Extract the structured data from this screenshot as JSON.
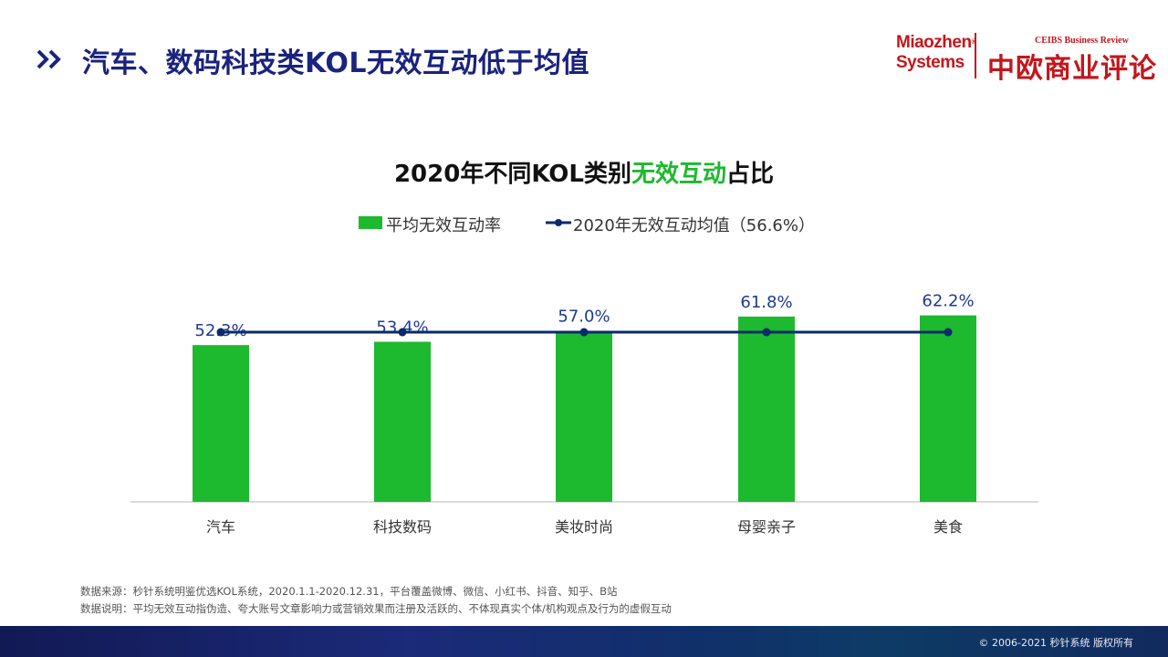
{
  "header": {
    "title": "汽车、数码科技类KOL无效互动低于均值",
    "logo_miaozhen_line1": "Miaozhen",
    "logo_miaozhen_line2": "Systems",
    "logo_ceibs_en": "CEIBS Business Review",
    "logo_ceibs_cn": "中欧商业评论"
  },
  "chart_title": {
    "part1": "2020年不同KOL类别",
    "highlight": "无效互动",
    "part2": "占比"
  },
  "legend": {
    "bar_label": "平均无效互动率",
    "line_label": "2020年无效互动均值（56.6%）"
  },
  "chart_data": {
    "type": "bar",
    "categories": [
      "汽车",
      "科技数码",
      "美妆时尚",
      "母婴亲子",
      "美食"
    ],
    "series": [
      {
        "name": "平均无效互动率",
        "values": [
          52.3,
          53.4,
          57.0,
          61.8,
          62.2
        ],
        "labels": [
          "52.3%",
          "53.4%",
          "57.0%",
          "61.8%",
          "62.2%"
        ],
        "color": "#1db92e"
      }
    ],
    "average_line": {
      "name": "2020年无效互动均值（56.6%）",
      "value": 56.6,
      "color": "#0b2a6b"
    },
    "ylim": [
      0,
      70
    ],
    "grid": false,
    "legend_position": "top"
  },
  "footnotes": {
    "line1": "数据来源：秒针系统明鉴优选KOL系统，2020.1.1-2020.12.31，平台覆盖微博、微信、小红书、抖音、知乎、B站",
    "line2": "数据说明：平均无效互动指伪造、夸大账号文章影响力或营销效果而注册及活跃的、不体现真实个体/机构观点及行为的虚假互动"
  },
  "footer": {
    "copyright": "© 2006-2021 秒针系统 版权所有"
  },
  "colors": {
    "title": "#1a237e",
    "bar": "#1db92e",
    "avg_line": "#0b2a6b",
    "label": "#1f3a93",
    "brand_red": "#c3161c"
  }
}
